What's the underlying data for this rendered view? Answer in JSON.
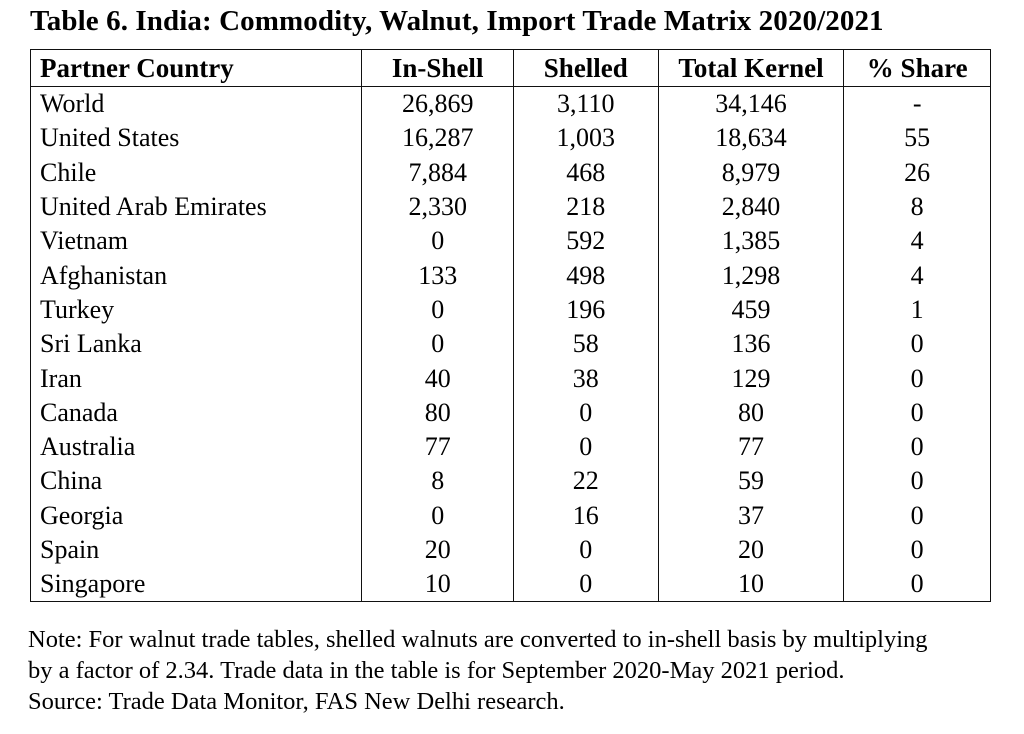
{
  "title": "Table 6. India: Commodity, Walnut, Import Trade Matrix 2020/2021",
  "table": {
    "headers": [
      "Partner Country",
      "In-Shell",
      "Shelled",
      "Total Kernel",
      "% Share"
    ],
    "rows": [
      [
        "World",
        "26,869",
        "3,110",
        "34,146",
        "-"
      ],
      [
        "United States",
        "16,287",
        "1,003",
        "18,634",
        "55"
      ],
      [
        "Chile",
        "7,884",
        "468",
        "8,979",
        "26"
      ],
      [
        "United Arab Emirates",
        "2,330",
        "218",
        "2,840",
        "8"
      ],
      [
        "Vietnam",
        "0",
        "592",
        "1,385",
        "4"
      ],
      [
        "Afghanistan",
        "133",
        "498",
        "1,298",
        "4"
      ],
      [
        "Turkey",
        "0",
        "196",
        "459",
        "1"
      ],
      [
        "Sri Lanka",
        "0",
        "58",
        "136",
        "0"
      ],
      [
        "Iran",
        "40",
        "38",
        "129",
        "0"
      ],
      [
        "Canada",
        "80",
        "0",
        "80",
        "0"
      ],
      [
        "Australia",
        "77",
        "0",
        "77",
        "0"
      ],
      [
        "China",
        "8",
        "22",
        "59",
        "0"
      ],
      [
        "Georgia",
        "0",
        "16",
        "37",
        "0"
      ],
      [
        "Spain",
        "20",
        "0",
        "20",
        "0"
      ],
      [
        "Singapore",
        "10",
        "0",
        "10",
        "0"
      ]
    ]
  },
  "note": {
    "line1": "Note: For walnut trade tables, shelled walnuts are converted to in-shell basis by multiplying",
    "line2": "by a factor of 2.34.  Trade data in the table is for September 2020-May 2021 period.",
    "line3": "Source: Trade Data Monitor, FAS New Delhi research."
  }
}
